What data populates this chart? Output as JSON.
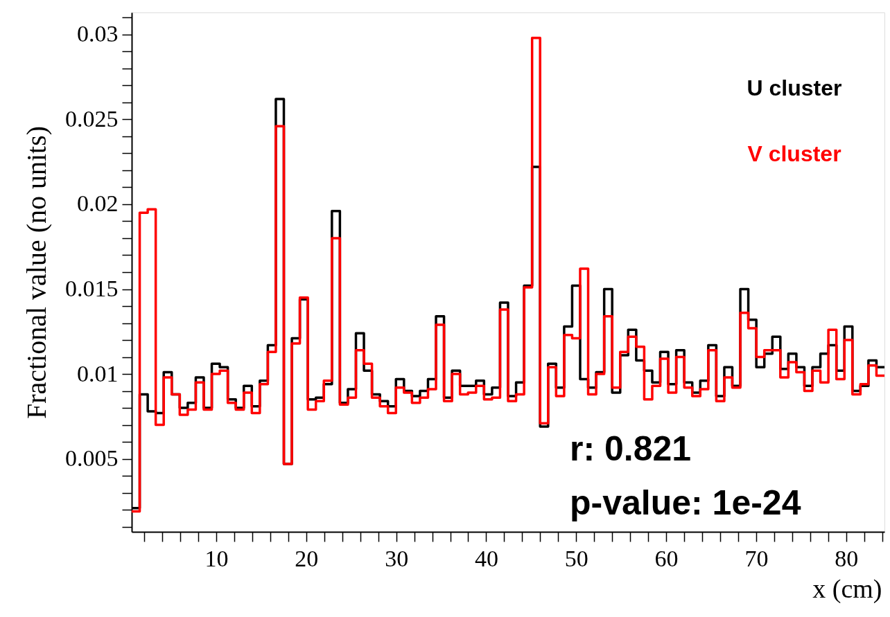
{
  "chart_data": {
    "type": "histogram",
    "xlabel": "x (cm)",
    "ylabel": "Fractional value (no units)",
    "bins": [
      0.6,
      1.49,
      2.38,
      3.27,
      4.16,
      5.05,
      5.94,
      6.83,
      7.72,
      8.61,
      9.5,
      10.39,
      11.28,
      12.17,
      13.06,
      13.95,
      14.84,
      15.73,
      16.62,
      17.51,
      18.4,
      19.29,
      20.18,
      21.07,
      21.96,
      22.85,
      23.74,
      24.63,
      25.52,
      26.41,
      27.3,
      28.19,
      29.08,
      29.97,
      30.86,
      31.75,
      32.64,
      33.53,
      34.42,
      35.31,
      36.2,
      37.09,
      37.98,
      38.87,
      39.76,
      40.65,
      41.54,
      42.43,
      43.32,
      44.21,
      45.1,
      45.99,
      46.88,
      47.77,
      48.66,
      49.55,
      50.44,
      51.33,
      52.22,
      53.11,
      54,
      54.89,
      55.78,
      56.67,
      57.56,
      58.45,
      59.34,
      60.23,
      61.12,
      62.01,
      62.9,
      63.79,
      64.68,
      65.57,
      66.46,
      67.35,
      68.24,
      69.13,
      70.02,
      70.91,
      71.8,
      72.69,
      73.58,
      74.47,
      75.36,
      76.25,
      77.14,
      78.03,
      78.92,
      79.81,
      80.7,
      81.59,
      82.48,
      83.37,
      84.26
    ],
    "series": [
      {
        "name": "U cluster",
        "color": "#000000",
        "values": [
          0.0021,
          0.0088,
          0.0078,
          0.0077,
          0.0101,
          0.0088,
          0.008,
          0.0083,
          0.0098,
          0.008,
          0.0106,
          0.0104,
          0.0085,
          0.008,
          0.0093,
          0.0081,
          0.0096,
          0.0117,
          0.0262,
          0.0047,
          0.0121,
          0.0144,
          0.0085,
          0.0086,
          0.0094,
          0.0196,
          0.0083,
          0.0091,
          0.0124,
          0.0102,
          0.0088,
          0.0084,
          0.0081,
          0.0097,
          0.009,
          0.0087,
          0.009,
          0.0097,
          0.0134,
          0.0086,
          0.0102,
          0.0093,
          0.0093,
          0.0096,
          0.0088,
          0.0092,
          0.0142,
          0.0087,
          0.0095,
          0.0152,
          0.0222,
          0.0069,
          0.0106,
          0.0092,
          0.0128,
          0.0152,
          0.0097,
          0.0092,
          0.0101,
          0.015,
          0.0089,
          0.0111,
          0.0126,
          0.0108,
          0.0102,
          0.0095,
          0.0113,
          0.0094,
          0.0114,
          0.0095,
          0.0089,
          0.0096,
          0.0117,
          0.0087,
          0.0104,
          0.0093,
          0.015,
          0.0132,
          0.0104,
          0.0112,
          0.0122,
          0.0103,
          0.0112,
          0.0104,
          0.0093,
          0.0104,
          0.0112,
          0.0117,
          0.0102,
          0.0128,
          0.009,
          0.0093,
          0.0108,
          0.0104
        ]
      },
      {
        "name": "V cluster",
        "color": "#ff0000",
        "values": [
          0.0019,
          0.0195,
          0.0197,
          0.007,
          0.0098,
          0.0088,
          0.0076,
          0.0079,
          0.0095,
          0.0079,
          0.01,
          0.0102,
          0.0083,
          0.0079,
          0.0089,
          0.0077,
          0.0094,
          0.0113,
          0.0246,
          0.0047,
          0.0118,
          0.0145,
          0.0079,
          0.0084,
          0.0096,
          0.018,
          0.0082,
          0.0086,
          0.0114,
          0.0106,
          0.0086,
          0.0081,
          0.0077,
          0.0092,
          0.0089,
          0.0083,
          0.0086,
          0.0091,
          0.0129,
          0.0084,
          0.01,
          0.0088,
          0.0089,
          0.0093,
          0.0085,
          0.0086,
          0.0138,
          0.0084,
          0.0088,
          0.0151,
          0.0298,
          0.0071,
          0.0104,
          0.0087,
          0.0123,
          0.0121,
          0.0162,
          0.0088,
          0.01,
          0.0134,
          0.0092,
          0.0113,
          0.0122,
          0.0116,
          0.0085,
          0.0093,
          0.0109,
          0.0089,
          0.011,
          0.0092,
          0.0087,
          0.0091,
          0.0114,
          0.0084,
          0.0098,
          0.0092,
          0.0136,
          0.0127,
          0.011,
          0.0114,
          0.0114,
          0.0098,
          0.0107,
          0.0101,
          0.009,
          0.0102,
          0.0095,
          0.0126,
          0.0097,
          0.012,
          0.0088,
          0.0094,
          0.0105,
          0.0099
        ]
      }
    ],
    "xlim": [
      0.6,
      84.26
    ],
    "xticks": [
      {
        "value": 2,
        "label": null
      },
      {
        "value": 4,
        "label": null
      },
      {
        "value": 6,
        "label": null
      },
      {
        "value": 8,
        "label": null
      },
      10,
      {
        "value": 12,
        "label": null
      },
      {
        "value": 14,
        "label": null
      },
      {
        "value": 16,
        "label": null
      },
      {
        "value": 18,
        "label": null
      },
      20,
      {
        "value": 22,
        "label": null
      },
      {
        "value": 24,
        "label": null
      },
      {
        "value": 26,
        "label": null
      },
      {
        "value": 28,
        "label": null
      },
      30,
      {
        "value": 32,
        "label": null
      },
      {
        "value": 34,
        "label": null
      },
      {
        "value": 36,
        "label": null
      },
      {
        "value": 38,
        "label": null
      },
      40,
      {
        "value": 42,
        "label": null
      },
      {
        "value": 44,
        "label": null
      },
      {
        "value": 46,
        "label": null
      },
      {
        "value": 48,
        "label": null
      },
      50,
      {
        "value": 52,
        "label": null
      },
      {
        "value": 54,
        "label": null
      },
      {
        "value": 56,
        "label": null
      },
      {
        "value": 58,
        "label": null
      },
      60,
      {
        "value": 62,
        "label": null
      },
      {
        "value": 64,
        "label": null
      },
      {
        "value": 66,
        "label": null
      },
      {
        "value": 68,
        "label": null
      },
      70,
      {
        "value": 72,
        "label": null
      },
      {
        "value": 74,
        "label": null
      },
      {
        "value": 76,
        "label": null
      },
      {
        "value": 78,
        "label": null
      },
      80,
      {
        "value": 82,
        "label": null
      },
      {
        "value": 84,
        "label": null
      }
    ],
    "ylim": [
      0.0007,
      0.0313
    ],
    "yticks": [
      {
        "value": 0.001,
        "label": null
      },
      {
        "value": 0.002,
        "label": null
      },
      {
        "value": 0.003,
        "label": null
      },
      {
        "value": 0.004,
        "label": null
      },
      0.005,
      {
        "value": 0.006,
        "label": null
      },
      {
        "value": 0.007,
        "label": null
      },
      {
        "value": 0.008,
        "label": null
      },
      {
        "value": 0.009,
        "label": null
      },
      0.01,
      {
        "value": 0.011,
        "label": null
      },
      {
        "value": 0.012,
        "label": null
      },
      {
        "value": 0.013,
        "label": null
      },
      {
        "value": 0.014,
        "label": null
      },
      0.015,
      {
        "value": 0.016,
        "label": null
      },
      {
        "value": 0.017,
        "label": null
      },
      {
        "value": 0.018,
        "label": null
      },
      {
        "value": 0.019,
        "label": null
      },
      0.02,
      {
        "value": 0.021,
        "label": null
      },
      {
        "value": 0.022,
        "label": null
      },
      {
        "value": 0.023,
        "label": null
      },
      {
        "value": 0.024,
        "label": null
      },
      0.025,
      {
        "value": 0.026,
        "label": null
      },
      {
        "value": 0.027,
        "label": null
      },
      {
        "value": 0.028,
        "label": null
      },
      {
        "value": 0.029,
        "label": null
      },
      0.03,
      {
        "value": 0.031,
        "label": null
      }
    ],
    "legend": "top right",
    "annotations": [
      "r: 0.821",
      "p-value: 1e-24"
    ]
  }
}
